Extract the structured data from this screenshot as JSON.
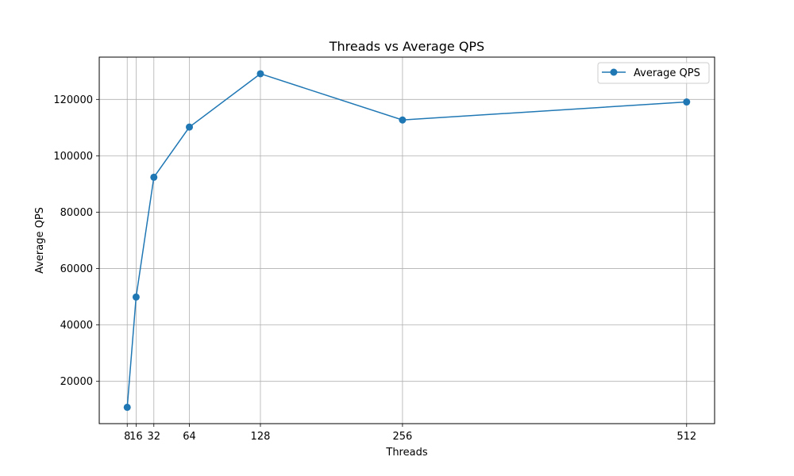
{
  "chart_data": {
    "type": "line",
    "title": "Threads vs Average QPS",
    "xlabel": "Threads",
    "ylabel": "Average QPS",
    "x": [
      8,
      16,
      32,
      64,
      128,
      256,
      512
    ],
    "xticks": [
      8,
      16,
      32,
      64,
      128,
      256,
      512
    ],
    "xtick_labels": [
      "8",
      "16",
      "32",
      "64",
      "128",
      "256",
      "512"
    ],
    "yticks": [
      20000,
      40000,
      60000,
      80000,
      100000,
      120000
    ],
    "ytick_labels": [
      "20000",
      "40000",
      "60000",
      "80000",
      "100000",
      "120000"
    ],
    "xlim": [
      -17.2,
      537.2
    ],
    "ylim": [
      5000,
      135000
    ],
    "grid": true,
    "legend_position": "top-right",
    "series": [
      {
        "name": "Average QPS",
        "color": "#1f77b4",
        "marker": "circle",
        "values": [
          10800,
          49900,
          92400,
          110200,
          129100,
          112700,
          119100
        ]
      }
    ]
  }
}
